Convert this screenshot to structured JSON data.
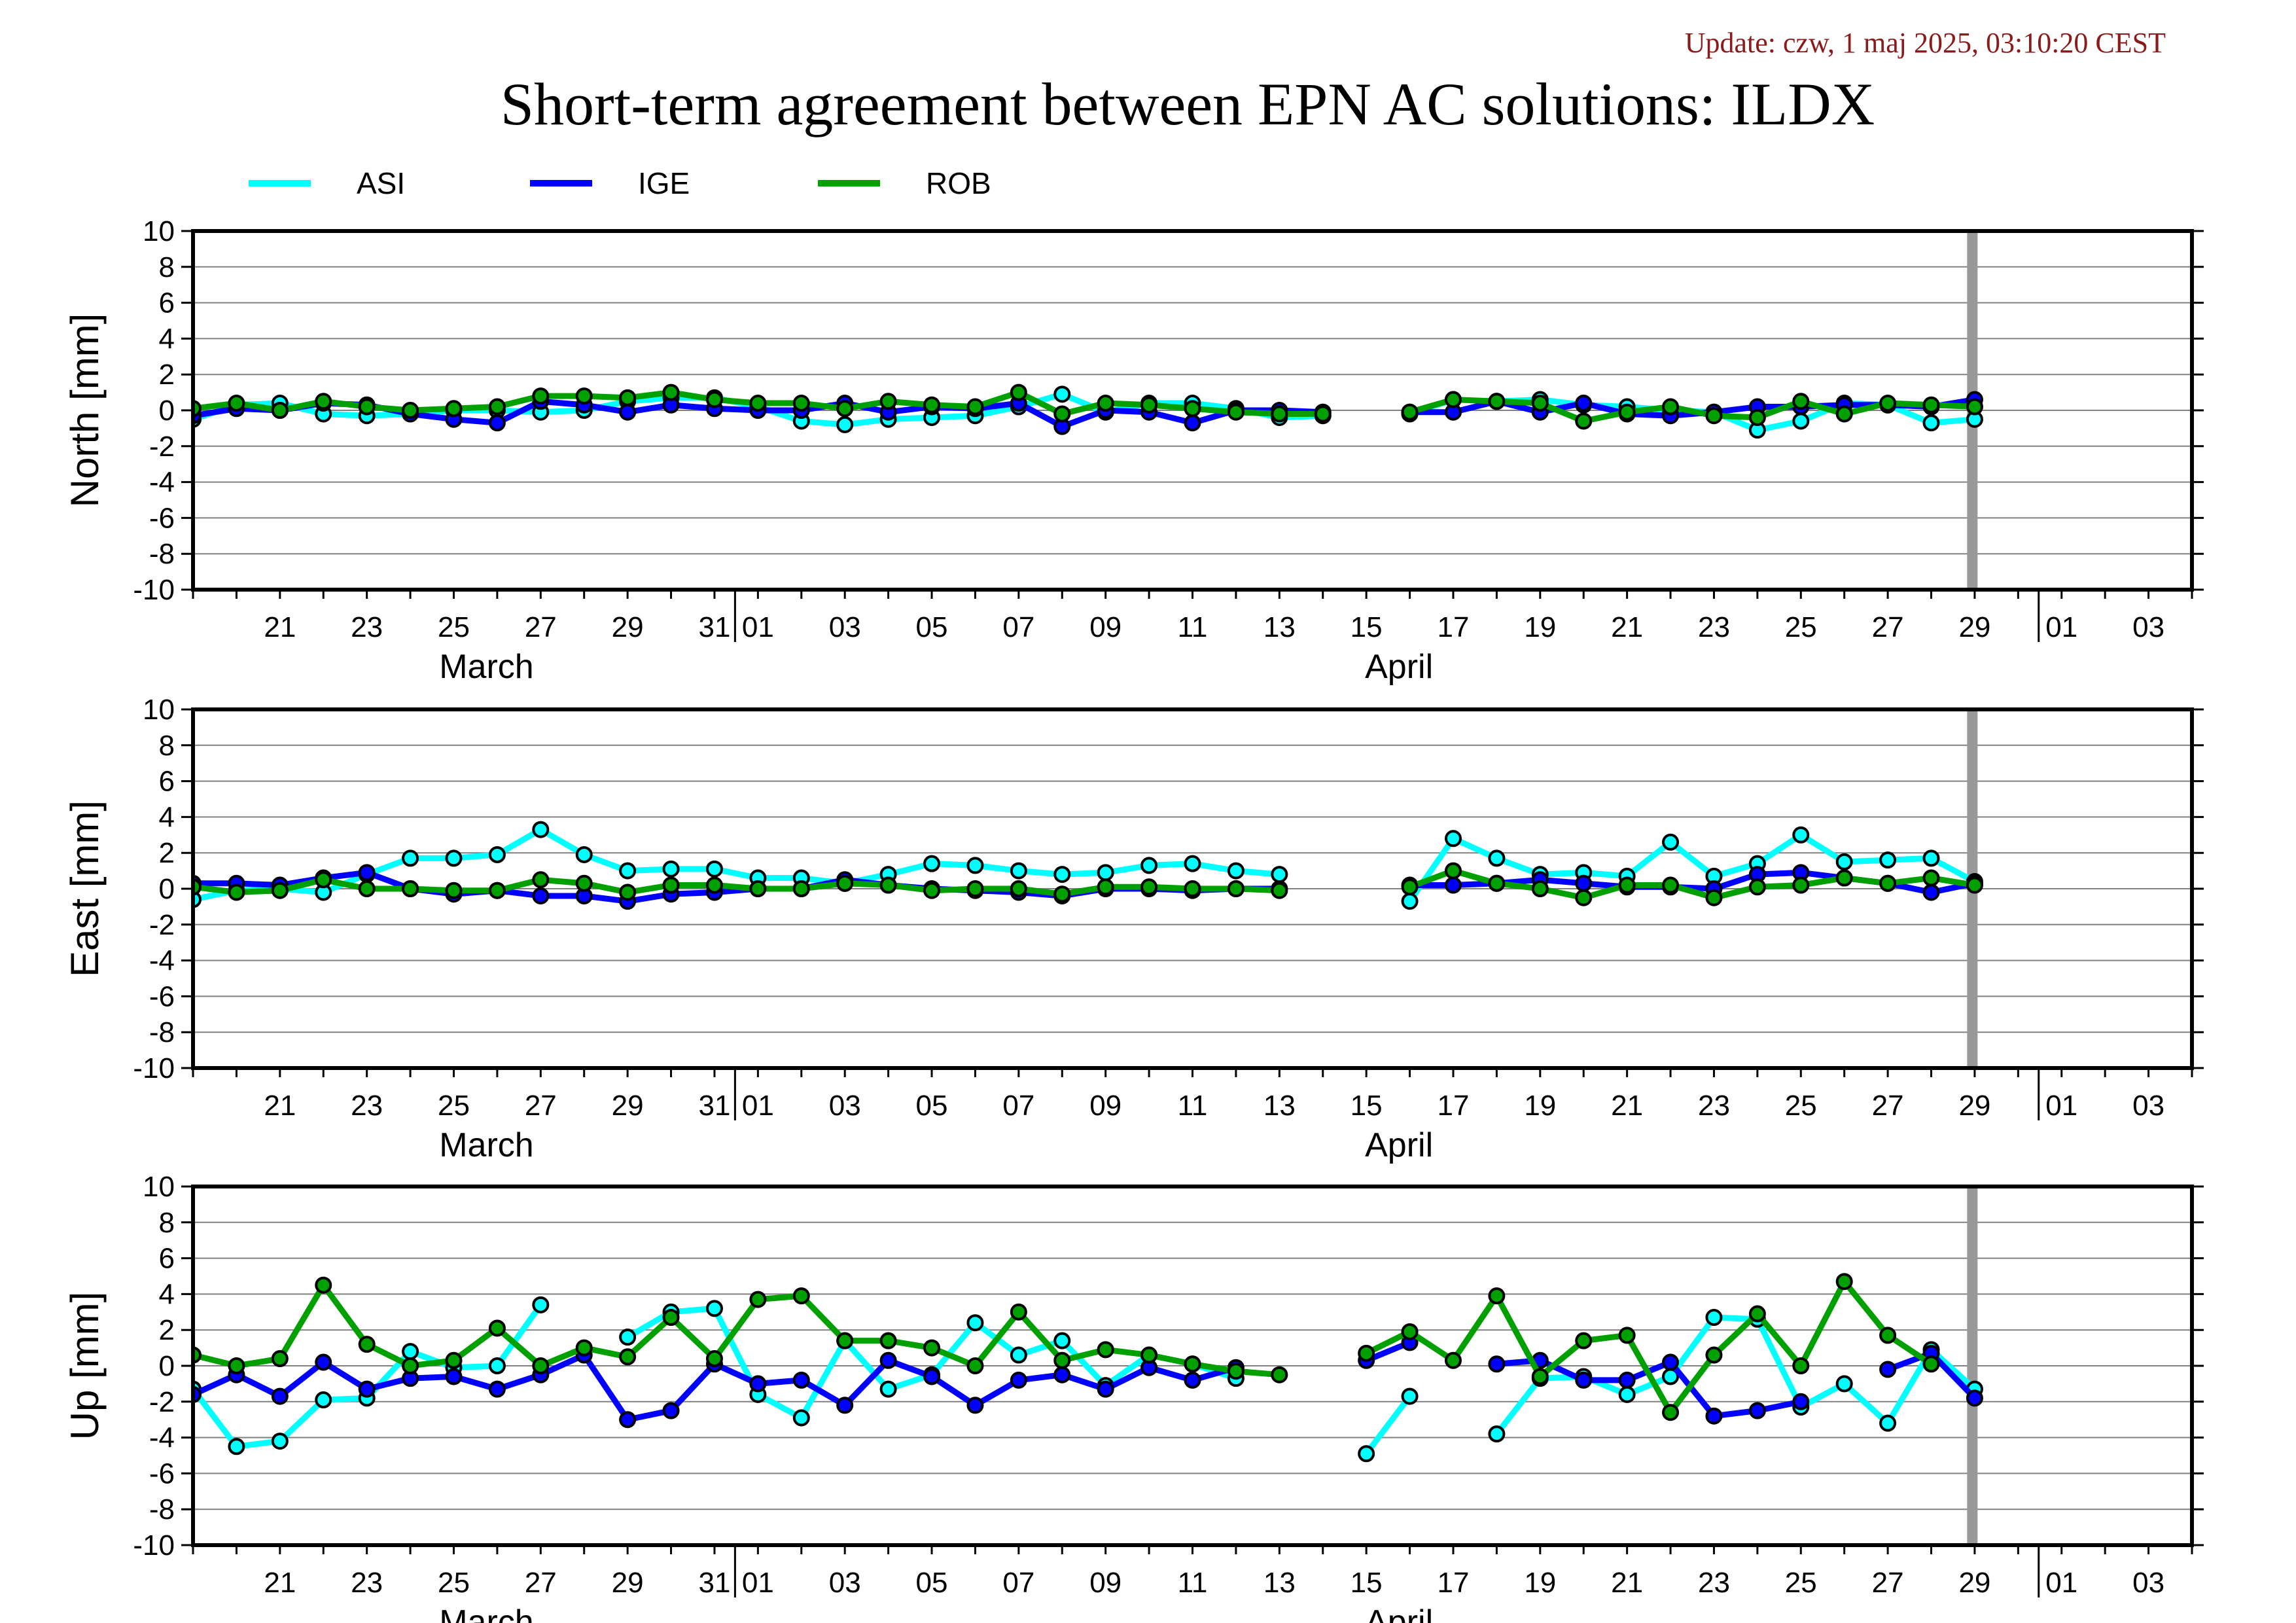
{
  "update": "Update: czw, 1 maj 2025, 03:10:20 CEST",
  "title": "Short-term agreement between EPN AC solutions: ILDX",
  "colors": {
    "ASI": "#00ffff",
    "IGE": "#0000ff",
    "ROB": "#00a000",
    "marker_edge": "#000000",
    "now_line": "#999999"
  },
  "legend": [
    "ASI",
    "IGE",
    "ROB"
  ],
  "chart_data": {
    "type": "line",
    "x_range": [
      "2025-03-19",
      "2025-05-04"
    ],
    "now_marker": "2025-04-30",
    "x_tick_labels": [
      {
        "date": "2025-03-21",
        "label": "21"
      },
      {
        "date": "2025-03-23",
        "label": "23"
      },
      {
        "date": "2025-03-25",
        "label": "25"
      },
      {
        "date": "2025-03-27",
        "label": "27"
      },
      {
        "date": "2025-03-29",
        "label": "29"
      },
      {
        "date": "2025-03-31",
        "label": "31"
      },
      {
        "date": "2025-04-01",
        "label": "01"
      },
      {
        "date": "2025-04-03",
        "label": "03"
      },
      {
        "date": "2025-04-05",
        "label": "05"
      },
      {
        "date": "2025-04-07",
        "label": "07"
      },
      {
        "date": "2025-04-09",
        "label": "09"
      },
      {
        "date": "2025-04-11",
        "label": "11"
      },
      {
        "date": "2025-04-13",
        "label": "13"
      },
      {
        "date": "2025-04-15",
        "label": "15"
      },
      {
        "date": "2025-04-17",
        "label": "17"
      },
      {
        "date": "2025-04-19",
        "label": "19"
      },
      {
        "date": "2025-04-21",
        "label": "21"
      },
      {
        "date": "2025-04-23",
        "label": "23"
      },
      {
        "date": "2025-04-25",
        "label": "25"
      },
      {
        "date": "2025-04-27",
        "label": "27"
      },
      {
        "date": "2025-04-29",
        "label": "29"
      },
      {
        "date": "2025-05-01",
        "label": "01"
      },
      {
        "date": "2025-05-03",
        "label": "03"
      }
    ],
    "month_labels": [
      {
        "date": "2025-03-25",
        "label": "March"
      },
      {
        "date": "2025-04-15",
        "label": "April"
      }
    ],
    "y_ticks": [
      10,
      8,
      6,
      4,
      2,
      0,
      -2,
      -4,
      -6,
      -8,
      -10
    ],
    "ylim": [
      -10,
      10
    ],
    "x_dates": [
      "2025-03-19",
      "2025-03-20",
      "2025-03-21",
      "2025-03-22",
      "2025-03-23",
      "2025-03-24",
      "2025-03-25",
      "2025-03-26",
      "2025-03-27",
      "2025-03-28",
      "2025-03-29",
      "2025-03-30",
      "2025-03-31",
      "2025-04-01",
      "2025-04-02",
      "2025-04-03",
      "2025-04-04",
      "2025-04-05",
      "2025-04-06",
      "2025-04-07",
      "2025-04-08",
      "2025-04-09",
      "2025-04-10",
      "2025-04-11",
      "2025-04-12",
      "2025-04-13",
      "2025-04-14",
      "2025-04-15",
      "2025-04-16",
      "2025-04-17",
      "2025-04-18",
      "2025-04-19",
      "2025-04-20",
      "2025-04-21",
      "2025-04-22",
      "2025-04-23",
      "2025-04-24",
      "2025-04-25",
      "2025-04-26",
      "2025-04-27",
      "2025-04-28",
      "2025-04-29"
    ],
    "panels": [
      {
        "ylabel": "North [mm]",
        "series": [
          {
            "name": "ASI",
            "values": [
              -0.5,
              0.3,
              0.4,
              -0.2,
              -0.3,
              -0.2,
              0.0,
              0.0,
              -0.1,
              0.0,
              0.5,
              0.7,
              0.7,
              0.2,
              -0.6,
              -0.8,
              -0.5,
              -0.4,
              -0.3,
              0.2,
              0.9,
              -0.1,
              0.4,
              0.4,
              0.1,
              -0.4,
              -0.3,
              null,
              -0.2,
              0.6,
              0.5,
              0.6,
              0.3,
              0.2,
              0.0,
              -0.1,
              -1.1,
              -0.6,
              0.4,
              0.3,
              -0.7,
              -0.5
            ]
          },
          {
            "name": "IGE",
            "values": [
              -0.3,
              0.1,
              0.0,
              0.4,
              0.3,
              -0.2,
              -0.5,
              -0.7,
              0.5,
              0.3,
              -0.1,
              0.3,
              0.1,
              0.0,
              0.0,
              0.4,
              -0.1,
              0.2,
              0.1,
              0.4,
              -0.9,
              0.0,
              -0.1,
              -0.7,
              0.0,
              0.0,
              -0.1,
              null,
              -0.1,
              -0.1,
              0.5,
              -0.1,
              0.4,
              -0.2,
              -0.3,
              -0.1,
              0.2,
              0.2,
              0.3,
              0.3,
              0.2,
              0.6
            ]
          },
          {
            "name": "ROB",
            "values": [
              0.1,
              0.4,
              0.0,
              0.5,
              0.2,
              0.0,
              0.1,
              0.2,
              0.8,
              0.8,
              0.7,
              1.0,
              0.6,
              0.4,
              0.4,
              0.1,
              0.5,
              0.3,
              0.2,
              1.0,
              -0.2,
              0.4,
              0.3,
              0.1,
              -0.1,
              -0.2,
              -0.2,
              null,
              -0.1,
              0.6,
              0.5,
              0.4,
              -0.6,
              -0.1,
              0.2,
              -0.3,
              -0.4,
              0.5,
              -0.2,
              0.4,
              0.3,
              0.2
            ]
          }
        ]
      },
      {
        "ylabel": "East [mm]",
        "series": [
          {
            "name": "ASI",
            "values": [
              -0.6,
              -0.1,
              0.0,
              -0.2,
              0.8,
              1.7,
              1.7,
              1.9,
              3.3,
              1.9,
              1.0,
              1.1,
              1.1,
              0.6,
              0.6,
              0.3,
              0.8,
              1.4,
              1.3,
              1.0,
              0.8,
              0.9,
              1.3,
              1.4,
              1.0,
              0.8,
              null,
              null,
              -0.7,
              2.8,
              1.7,
              0.8,
              0.9,
              0.7,
              2.6,
              0.7,
              1.4,
              3.0,
              1.5,
              1.6,
              1.7,
              0.4
            ]
          },
          {
            "name": "IGE",
            "values": [
              0.3,
              0.3,
              0.2,
              0.6,
              0.9,
              0.0,
              -0.3,
              -0.1,
              -0.4,
              -0.4,
              -0.7,
              -0.3,
              -0.2,
              0.0,
              0.0,
              0.5,
              0.2,
              0.0,
              -0.1,
              -0.2,
              -0.4,
              0.0,
              0.0,
              -0.1,
              0.0,
              0.0,
              null,
              null,
              0.2,
              0.2,
              0.3,
              0.5,
              0.3,
              0.1,
              0.1,
              0.0,
              0.8,
              0.9,
              0.6,
              0.3,
              -0.2,
              0.3
            ]
          },
          {
            "name": "ROB",
            "values": [
              0.1,
              -0.2,
              -0.1,
              0.5,
              0.0,
              0.0,
              -0.1,
              -0.1,
              0.5,
              0.3,
              -0.2,
              0.2,
              0.2,
              0.0,
              0.0,
              0.3,
              0.2,
              -0.1,
              0.0,
              0.0,
              -0.3,
              0.1,
              0.1,
              0.0,
              0.0,
              -0.1,
              null,
              null,
              0.1,
              1.0,
              0.3,
              0.0,
              -0.5,
              0.2,
              0.2,
              -0.5,
              0.1,
              0.2,
              0.6,
              0.3,
              0.6,
              0.2
            ]
          }
        ]
      },
      {
        "ylabel": "Up [mm]",
        "series": [
          {
            "name": "ASI",
            "values": [
              -1.3,
              -4.5,
              -4.2,
              -1.9,
              -1.8,
              0.8,
              -0.1,
              0.0,
              3.4,
              null,
              1.6,
              3.0,
              3.2,
              -1.6,
              -2.9,
              1.4,
              -1.3,
              -0.5,
              2.4,
              0.6,
              1.4,
              -1.1,
              0.6,
              0.1,
              -0.7,
              null,
              null,
              -4.9,
              -1.7,
              null,
              -3.8,
              -0.7,
              -0.6,
              -1.6,
              -0.6,
              2.7,
              2.6,
              -2.3,
              -1.0,
              -3.2,
              0.9,
              -1.3
            ]
          },
          {
            "name": "IGE",
            "values": [
              -1.6,
              -0.5,
              -1.7,
              0.2,
              -1.3,
              -0.7,
              -0.6,
              -1.3,
              -0.5,
              0.6,
              -3.0,
              -2.5,
              0.1,
              -1.0,
              -0.8,
              -2.2,
              0.3,
              -0.6,
              -2.2,
              -0.8,
              -0.5,
              -1.3,
              -0.1,
              -0.8,
              -0.1,
              null,
              null,
              0.3,
              1.3,
              null,
              0.1,
              0.3,
              -0.8,
              -0.8,
              0.2,
              -2.8,
              -2.5,
              -2.0,
              null,
              -0.2,
              0.7,
              -1.8
            ]
          },
          {
            "name": "ROB",
            "values": [
              0.6,
              0.0,
              0.4,
              4.5,
              1.2,
              0.0,
              0.3,
              2.1,
              0.0,
              1.0,
              0.5,
              2.7,
              0.4,
              3.7,
              3.9,
              1.4,
              1.4,
              1.0,
              0.0,
              3.0,
              0.3,
              0.9,
              0.6,
              0.1,
              -0.3,
              -0.5,
              null,
              0.7,
              1.9,
              0.3,
              3.9,
              -0.6,
              1.4,
              1.7,
              -2.6,
              0.6,
              2.9,
              0.0,
              4.7,
              1.7,
              0.1,
              null
            ]
          }
        ]
      }
    ]
  }
}
